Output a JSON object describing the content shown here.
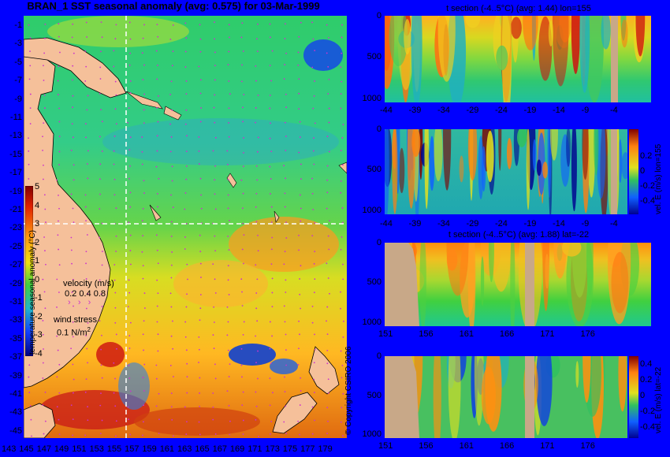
{
  "map": {
    "title": "BRAN_1 SST seasonal anomaly (avg: 0.575) for 03-Mar-1999",
    "lat_ticks": [
      "-1",
      "-3",
      "-5",
      "-7",
      "-9",
      "-11",
      "-13",
      "-15",
      "-17",
      "-19",
      "-21",
      "-23",
      "-25",
      "-27",
      "-29",
      "-31",
      "-33",
      "-35",
      "-37",
      "-39",
      "-41",
      "-43",
      "-45"
    ],
    "lon_ticks": [
      "143",
      "145",
      "147",
      "149",
      "151",
      "153",
      "155",
      "157",
      "159",
      "161",
      "163",
      "165",
      "167",
      "169",
      "171",
      "173",
      "175",
      "177",
      "179"
    ],
    "colorbar": {
      "ticks": [
        "5",
        "4",
        "3",
        "2",
        "1",
        "0",
        "-1",
        "-2",
        "-3",
        "-4"
      ],
      "label": "temperature seasonal anomaly (°C)"
    },
    "velocity_legend": {
      "title": "velocity (m/s)",
      "values": "0.2 0.4 0.8"
    },
    "wind_legend": {
      "title": "wind stress",
      "value": "0.1 N/m",
      "sup": "2"
    },
    "copyright": "© Copyright CSIRO 2006"
  },
  "colors": {
    "background": "#0000ff",
    "land": "#f5c09a",
    "section_land": "#c8a888",
    "velocity_arrows": "#cc33cc",
    "crosshair": "#ffffff"
  },
  "sections": [
    {
      "title": "t section (-4..5°C) (avg: 1.44) lon=155",
      "x_ticks": [
        "-44",
        "-39",
        "-34",
        "-29",
        "-24",
        "-19",
        "-14",
        "-9",
        "-4"
      ],
      "y_ticks": [
        "0",
        "500",
        "1000"
      ]
    },
    {
      "title": "",
      "x_ticks": [
        "-44",
        "-39",
        "-34",
        "-29",
        "-24",
        "-19",
        "-14",
        "-9",
        "-4"
      ],
      "y_ticks": [
        "0",
        "500",
        "1000"
      ],
      "colorbar_ticks": [
        "0.2",
        "0",
        "-0.2",
        "-0.4"
      ],
      "colorbar_label": "vel. E (m/s) lon=155"
    },
    {
      "title": "t section (-4..5°C) (avg: 1.88) lat=-22",
      "x_ticks": [
        "151",
        "156",
        "161",
        "166",
        "171",
        "176"
      ],
      "y_ticks": [
        "0",
        "500",
        "1000"
      ]
    },
    {
      "title": "",
      "x_ticks": [
        "151",
        "156",
        "161",
        "166",
        "171",
        "176"
      ],
      "y_ticks": [
        "0",
        "500",
        "1000"
      ],
      "colorbar_ticks": [
        "0.4",
        "0.2",
        "0",
        "-0.2",
        "-0.4"
      ],
      "colorbar_label": "vel. E (m/s) lat=-22"
    }
  ],
  "chart_data": [
    {
      "type": "heatmap",
      "title": "BRAN_1 SST seasonal anomaly (avg: 0.575) for 03-Mar-1999",
      "xlabel": "",
      "ylabel": "",
      "xlim": [
        143,
        180
      ],
      "ylim": [
        -45,
        0
      ],
      "value_range": [
        -4,
        5
      ],
      "crosshair": {
        "lon": 155,
        "lat": -22
      },
      "colorbar_label": "temperature seasonal anomaly (°C)"
    },
    {
      "type": "heatmap",
      "title": "t section (-4..5°C) (avg: 1.44) lon=155",
      "xlim": [
        -45,
        0
      ],
      "ylim": [
        1050,
        0
      ],
      "value_range": [
        -4,
        5
      ]
    },
    {
      "type": "heatmap",
      "title": "",
      "xlim": [
        -45,
        0
      ],
      "ylim": [
        1050,
        0
      ],
      "value_range": [
        -0.4,
        0.3
      ],
      "colorbar_label": "vel. E (m/s) lon=155"
    },
    {
      "type": "heatmap",
      "title": "t section (-4..5°C) (avg: 1.88) lat=-22",
      "xlim": [
        150,
        180
      ],
      "ylim": [
        1050,
        0
      ],
      "value_range": [
        -4,
        5
      ]
    },
    {
      "type": "heatmap",
      "title": "",
      "xlim": [
        150,
        180
      ],
      "ylim": [
        1050,
        0
      ],
      "value_range": [
        -0.4,
        0.4
      ],
      "colorbar_label": "vel. E (m/s) lat=-22"
    }
  ]
}
